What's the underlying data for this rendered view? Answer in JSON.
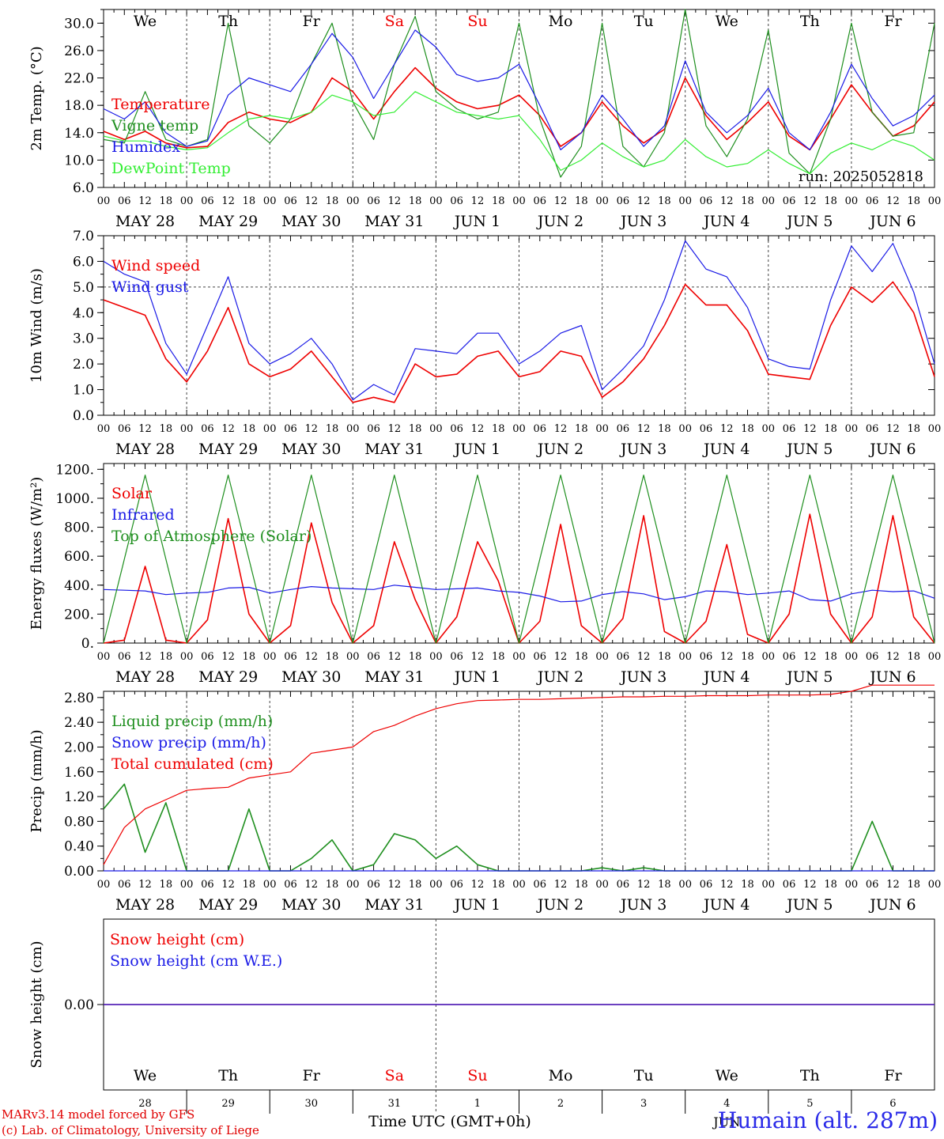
{
  "colors": {
    "red": "#ee0000",
    "green": "#1f8f1f",
    "blue": "#1a1ae6",
    "lime": "#33ee33",
    "axis": "#000000",
    "dash": "#444444"
  },
  "days": [
    "MAY 28",
    "MAY 29",
    "MAY 30",
    "MAY 31",
    "JUN  1",
    "JUN  2",
    "JUN  3",
    "JUN  4",
    "JUN  5",
    "JUN  6"
  ],
  "hour_ticks": [
    "00",
    "06",
    "12",
    "18"
  ],
  "hour_end": "00",
  "weekdays": [
    {
      "label": "We",
      "color": "#000000"
    },
    {
      "label": "Th",
      "color": "#000000"
    },
    {
      "label": "Fr",
      "color": "#000000"
    },
    {
      "label": "Sa",
      "color": "#ee0000"
    },
    {
      "label": "Su",
      "color": "#ee0000"
    },
    {
      "label": "Mo",
      "color": "#000000"
    },
    {
      "label": "Tu",
      "color": "#000000"
    },
    {
      "label": "We",
      "color": "#000000"
    },
    {
      "label": "Th",
      "color": "#000000"
    },
    {
      "label": "Fr",
      "color": "#000000"
    }
  ],
  "day_numbers": [
    "28",
    "29",
    "30",
    "31",
    "1",
    "2",
    "3",
    "4",
    "5",
    "6"
  ],
  "footer": {
    "credit_line1": "MARv3.14 model forced by GFS",
    "credit_line2": "(c) Lab. of Climatology, University of Liege",
    "xlabel": "Time UTC (GMT+0h)",
    "station": "Humain (alt. 287m)",
    "overlap_text": "JUN"
  },
  "chart_data": [
    {
      "type": "line",
      "ylabel": "2m Temp. (°C)",
      "ylim": [
        6,
        32
      ],
      "yticks": [
        6,
        10,
        14,
        18,
        22,
        26,
        30
      ],
      "ytick_labels": [
        "6.0",
        "10.0",
        "14.0",
        "18.0",
        "22.0",
        "26.0",
        "30.0"
      ],
      "annotation": "run: 2025052818",
      "show_weekdays": true,
      "x_hours": [
        0,
        6,
        12,
        18,
        24,
        30,
        36,
        42,
        48,
        54,
        60,
        66,
        72,
        78,
        84,
        90,
        96,
        102,
        108,
        114,
        120,
        126,
        132,
        138,
        144,
        150,
        156,
        162,
        168,
        174,
        180,
        186,
        192,
        198,
        204,
        210,
        216,
        222,
        228,
        234,
        240
      ],
      "series": [
        {
          "name": "Temperature",
          "color": "#ee0000",
          "values": [
            14.2,
            13.0,
            14.2,
            12.5,
            11.8,
            12.0,
            15.5,
            17.0,
            16.0,
            15.5,
            17.0,
            22.0,
            20.0,
            16.0,
            20.0,
            23.5,
            20.5,
            18.5,
            17.5,
            18.0,
            19.5,
            16.5,
            12.0,
            14.0,
            18.5,
            15.0,
            12.5,
            14.5,
            22.0,
            16.5,
            13.0,
            15.5,
            18.5,
            13.5,
            11.5,
            16.0,
            21.0,
            17.0,
            13.5,
            15.0,
            18.5
          ]
        },
        {
          "name": "Vigne temp",
          "color": "#1f8f1f",
          "values": [
            13.0,
            12.5,
            20.0,
            13.0,
            12.0,
            13.0,
            30.0,
            15.0,
            12.5,
            16.0,
            24.0,
            30.0,
            18.5,
            13.0,
            24.0,
            31.0,
            20.0,
            17.5,
            16.0,
            17.0,
            30.0,
            16.0,
            7.5,
            12.0,
            30.0,
            12.0,
            9.0,
            14.0,
            32.0,
            15.0,
            10.5,
            16.0,
            29.0,
            11.0,
            8.0,
            16.0,
            30.0,
            17.0,
            13.5,
            14.0,
            30.0
          ]
        },
        {
          "name": "Humidex",
          "color": "#1a1ae6",
          "values": [
            17.5,
            16.0,
            18.5,
            14.0,
            12.0,
            12.8,
            19.5,
            22.0,
            21.0,
            20.0,
            24.0,
            28.5,
            25.0,
            19.0,
            24.0,
            29.0,
            26.5,
            22.5,
            21.5,
            22.0,
            24.0,
            18.0,
            11.5,
            14.0,
            19.5,
            16.0,
            12.0,
            15.0,
            24.5,
            17.0,
            14.0,
            16.5,
            20.5,
            14.0,
            11.5,
            17.0,
            24.0,
            19.0,
            15.0,
            16.5,
            19.5
          ]
        },
        {
          "name": "DewPoint Temp",
          "color": "#33ee33",
          "values": [
            13.5,
            12.8,
            12.8,
            12.0,
            11.5,
            11.8,
            14.0,
            16.0,
            16.5,
            16.0,
            17.0,
            19.5,
            18.5,
            16.5,
            17.0,
            20.0,
            18.5,
            17.0,
            16.5,
            16.0,
            16.5,
            13.0,
            8.5,
            10.0,
            12.5,
            10.5,
            9.0,
            10.0,
            13.0,
            10.5,
            9.0,
            9.5,
            11.5,
            9.5,
            8.0,
            11.0,
            12.5,
            11.5,
            13.0,
            12.0,
            10.0
          ]
        }
      ]
    },
    {
      "type": "line",
      "ylabel": "10m Wind (m/s)",
      "ylim": [
        0,
        7
      ],
      "yticks": [
        0,
        1,
        2,
        3,
        4,
        5,
        6,
        7
      ],
      "ytick_labels": [
        "0.0",
        "1.0",
        "2.0",
        "3.0",
        "4.0",
        "5.0",
        "6.0",
        "7.0"
      ],
      "ref_line": 5.0,
      "x_hours": [
        0,
        6,
        12,
        18,
        24,
        30,
        36,
        42,
        48,
        54,
        60,
        66,
        72,
        78,
        84,
        90,
        96,
        102,
        108,
        114,
        120,
        126,
        132,
        138,
        144,
        150,
        156,
        162,
        168,
        174,
        180,
        186,
        192,
        198,
        204,
        210,
        216,
        222,
        228,
        234,
        240
      ],
      "series": [
        {
          "name": "Wind speed",
          "color": "#ee0000",
          "values": [
            4.5,
            4.2,
            3.9,
            2.2,
            1.3,
            2.5,
            4.2,
            2.0,
            1.5,
            1.8,
            2.5,
            1.5,
            0.5,
            0.7,
            0.5,
            2.0,
            1.5,
            1.6,
            2.3,
            2.5,
            1.5,
            1.7,
            2.5,
            2.3,
            0.7,
            1.3,
            2.2,
            3.5,
            5.1,
            4.3,
            4.3,
            3.3,
            1.6,
            1.5,
            1.4,
            3.5,
            5.0,
            4.4,
            5.2,
            4.0,
            1.5
          ]
        },
        {
          "name": "Wind gust",
          "color": "#1a1ae6",
          "values": [
            6.0,
            5.5,
            5.2,
            2.8,
            1.6,
            3.5,
            5.4,
            2.8,
            2.0,
            2.4,
            3.0,
            2.0,
            0.6,
            1.2,
            0.8,
            2.6,
            2.5,
            2.4,
            3.2,
            3.2,
            2.0,
            2.5,
            3.2,
            3.5,
            1.0,
            1.8,
            2.7,
            4.5,
            6.8,
            5.7,
            5.4,
            4.2,
            2.2,
            1.9,
            1.8,
            4.5,
            6.6,
            5.6,
            6.7,
            4.8,
            2.0
          ]
        }
      ]
    },
    {
      "type": "line",
      "ylabel": "Energy fluxes (W/m²)",
      "ylim": [
        0,
        1240
      ],
      "yticks": [
        0,
        200,
        400,
        600,
        800,
        1000,
        1200
      ],
      "ytick_labels": [
        "0.",
        "200.",
        "400.",
        "600.",
        "800.",
        "1000.",
        "1200."
      ],
      "x_hours": [
        0,
        6,
        12,
        18,
        24,
        30,
        36,
        42,
        48,
        54,
        60,
        66,
        72,
        78,
        84,
        90,
        96,
        102,
        108,
        114,
        120,
        126,
        132,
        138,
        144,
        150,
        156,
        162,
        168,
        174,
        180,
        186,
        192,
        198,
        204,
        210,
        216,
        222,
        228,
        234,
        240
      ],
      "series": [
        {
          "name": "Solar",
          "color": "#ee0000",
          "values": [
            0,
            20,
            530,
            20,
            0,
            160,
            860,
            200,
            0,
            120,
            830,
            280,
            0,
            120,
            700,
            300,
            0,
            180,
            700,
            430,
            0,
            150,
            820,
            120,
            0,
            170,
            880,
            80,
            0,
            150,
            680,
            60,
            0,
            200,
            890,
            200,
            0,
            180,
            880,
            180,
            0
          ]
        },
        {
          "name": "Infrared",
          "color": "#1a1ae6",
          "values": [
            370,
            365,
            360,
            335,
            345,
            350,
            380,
            385,
            345,
            370,
            390,
            380,
            375,
            370,
            400,
            385,
            370,
            375,
            380,
            360,
            350,
            325,
            285,
            290,
            335,
            355,
            340,
            300,
            320,
            360,
            355,
            335,
            345,
            360,
            300,
            290,
            340,
            365,
            355,
            360,
            310
          ]
        },
        {
          "name": "Top of Atmosphere (Solar)",
          "color": "#1f8f1f",
          "values": [
            0,
            580,
            1160,
            580,
            0,
            580,
            1160,
            580,
            0,
            580,
            1160,
            580,
            0,
            580,
            1160,
            580,
            0,
            580,
            1160,
            580,
            0,
            580,
            1160,
            580,
            0,
            580,
            1160,
            580,
            0,
            580,
            1160,
            580,
            0,
            580,
            1160,
            580,
            0,
            580,
            1160,
            580,
            0
          ]
        }
      ]
    },
    {
      "type": "line",
      "ylabel": "Precip (mm/h)",
      "ylim": [
        0,
        2.9
      ],
      "yticks": [
        0,
        0.4,
        0.8,
        1.2,
        1.6,
        2.0,
        2.4,
        2.8
      ],
      "ytick_labels": [
        "0.00",
        "0.40",
        "0.80",
        "1.20",
        "1.60",
        "2.00",
        "2.40",
        "2.80"
      ],
      "x_hours": [
        0,
        6,
        12,
        18,
        24,
        30,
        36,
        42,
        48,
        54,
        60,
        66,
        72,
        78,
        84,
        90,
        96,
        102,
        108,
        114,
        120,
        126,
        132,
        138,
        144,
        150,
        156,
        162,
        168,
        174,
        180,
        186,
        192,
        198,
        204,
        210,
        216,
        222,
        228,
        234,
        240
      ],
      "series": [
        {
          "name": "Liquid precip (mm/h)",
          "color": "#1f8f1f",
          "values": [
            1.0,
            1.4,
            0.3,
            1.1,
            0.0,
            0.0,
            0.0,
            1.0,
            0.0,
            0.0,
            0.2,
            0.5,
            0.0,
            0.1,
            0.6,
            0.5,
            0.2,
            0.4,
            0.1,
            0.0,
            0.0,
            0.0,
            0.0,
            0.0,
            0.05,
            0.0,
            0.05,
            0.0,
            0.0,
            0.0,
            0.0,
            0.0,
            0.0,
            0.0,
            0.0,
            0.0,
            0.0,
            0.8,
            0.0,
            0.0,
            0.0
          ]
        },
        {
          "name": "Snow precip (mm/h)",
          "color": "#1a1ae6",
          "values": [
            0,
            0,
            0,
            0,
            0,
            0,
            0,
            0,
            0,
            0,
            0,
            0,
            0,
            0,
            0,
            0,
            0,
            0,
            0,
            0,
            0,
            0,
            0,
            0,
            0,
            0,
            0,
            0,
            0,
            0,
            0,
            0,
            0,
            0,
            0,
            0,
            0,
            0,
            0,
            0,
            0
          ]
        },
        {
          "name": "Total cumulated (cm)",
          "color": "#ee0000",
          "values": [
            0.1,
            0.7,
            1.0,
            1.15,
            1.3,
            1.33,
            1.35,
            1.5,
            1.55,
            1.6,
            1.9,
            1.95,
            2.0,
            2.25,
            2.35,
            2.5,
            2.62,
            2.7,
            2.75,
            2.76,
            2.77,
            2.77,
            2.78,
            2.79,
            2.8,
            2.81,
            2.81,
            2.82,
            2.82,
            2.83,
            2.83,
            2.83,
            2.84,
            2.84,
            2.84,
            2.85,
            2.9,
            3.0,
            3.0,
            3.0,
            3.0
          ]
        }
      ]
    },
    {
      "type": "line",
      "ylabel": "Snow height (cm)",
      "ylim": [
        -1,
        1
      ],
      "yticks": [
        0
      ],
      "ytick_labels": [
        "0.00"
      ],
      "x_hours": [
        0,
        240
      ],
      "series": [
        {
          "name": "Snow height (cm)",
          "color": "#ee0000",
          "values": [
            0,
            0
          ]
        },
        {
          "name": "Snow height (cm W.E.)",
          "color": "#1a1ae6",
          "values": [
            0,
            0
          ]
        }
      ]
    }
  ]
}
